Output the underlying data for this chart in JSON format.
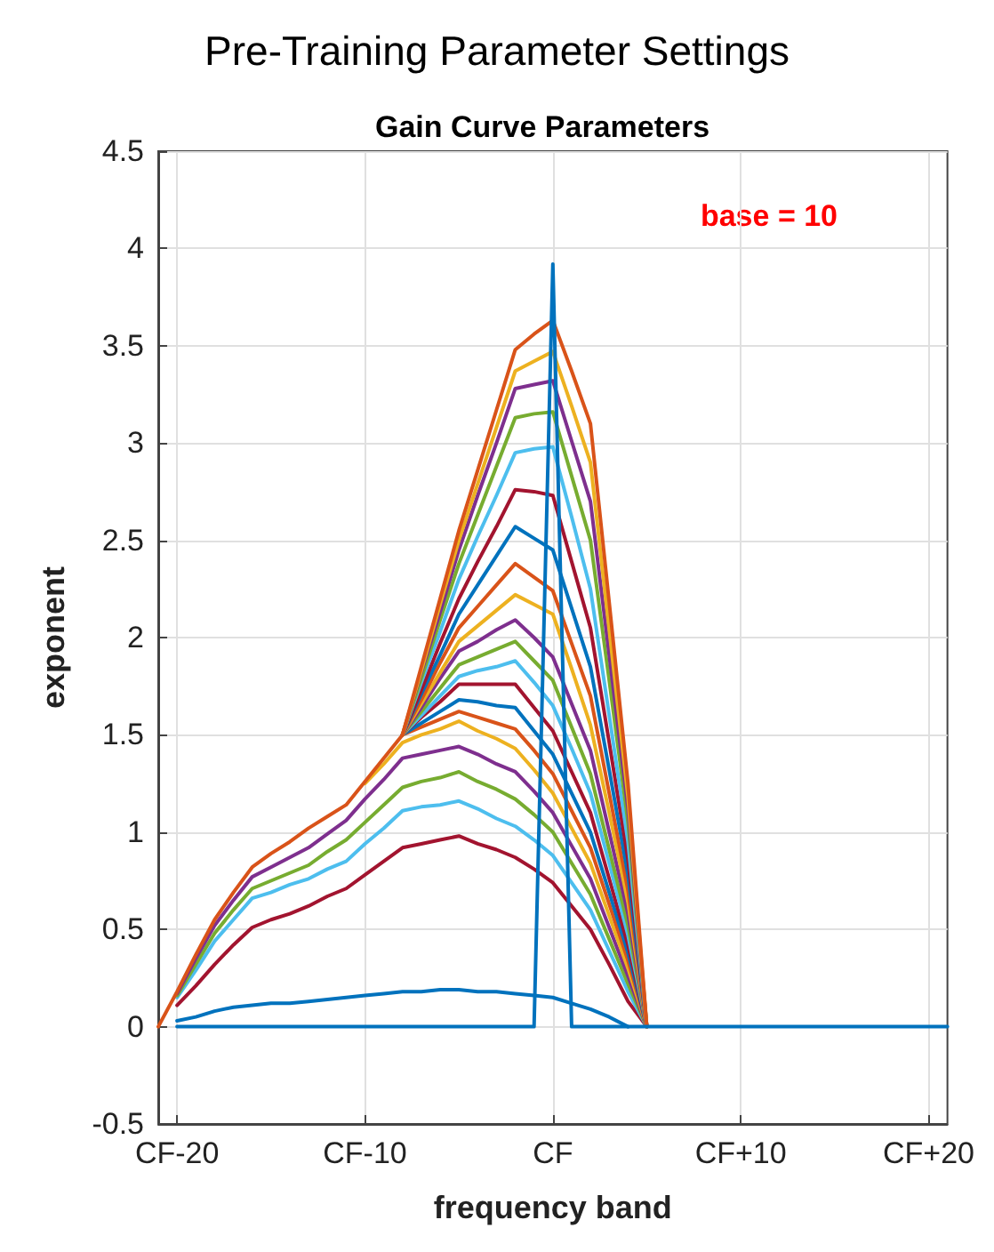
{
  "chart_data": {
    "type": "line",
    "title": "Pre-Training Parameter Settings",
    "subtitle": "Gain Curve Parameters",
    "xlabel": "frequency band",
    "ylabel": "exponent",
    "annotations": [
      "base = 10"
    ],
    "categories": [
      null,
      "CF-20",
      null,
      null,
      null,
      null,
      null,
      null,
      null,
      null,
      null,
      "CF-10",
      null,
      null,
      null,
      null,
      null,
      null,
      null,
      null,
      null,
      "CF",
      null,
      null,
      null,
      null,
      null,
      null,
      null,
      null,
      null,
      "CF+10",
      null,
      null,
      null,
      null,
      null,
      null,
      null,
      null,
      null,
      "CF+20",
      null
    ],
    "series": [
      {
        "color": "#0072bd",
        "values": [
          null,
          0.03,
          0.05,
          0.08,
          0.1,
          0.11,
          0.12,
          0.12,
          0.13,
          0.14,
          0.15,
          0.16,
          0.17,
          0.18,
          0.18,
          0.19,
          0.19,
          0.18,
          0.18,
          0.17,
          0.16,
          0.15,
          0.12,
          0.09,
          0.05,
          0,
          null,
          null,
          null,
          null,
          null,
          null,
          null,
          null,
          null,
          null,
          null,
          null,
          null,
          null,
          null,
          null,
          null
        ]
      },
      {
        "color": "#a2142f",
        "values": [
          null,
          0.11,
          0.21,
          0.32,
          0.42,
          0.51,
          0.55,
          0.58,
          0.62,
          0.67,
          0.71,
          0.78,
          0.85,
          0.92,
          0.94,
          0.96,
          0.98,
          0.94,
          0.91,
          0.87,
          0.81,
          0.74,
          0.62,
          0.5,
          0.32,
          0.13,
          0,
          null,
          null,
          null,
          null,
          null,
          null,
          null,
          null,
          null,
          null,
          null,
          null,
          null,
          null,
          null,
          null
        ]
      },
      {
        "color": "#4dbeee",
        "values": [
          null,
          0.15,
          0.29,
          0.44,
          0.55,
          0.66,
          0.69,
          0.73,
          0.76,
          0.81,
          0.85,
          0.94,
          1.02,
          1.11,
          1.13,
          1.14,
          1.16,
          1.12,
          1.07,
          1.03,
          0.96,
          0.88,
          0.74,
          0.6,
          0.39,
          0.18,
          0,
          null,
          null,
          null,
          null,
          null,
          null,
          null,
          null,
          null,
          null,
          null,
          null,
          null,
          null,
          null,
          null
        ]
      },
      {
        "color": "#77ac30",
        "values": [
          null,
          0.16,
          0.32,
          0.48,
          0.6,
          0.71,
          0.75,
          0.79,
          0.83,
          0.9,
          0.96,
          1.05,
          1.14,
          1.23,
          1.26,
          1.28,
          1.31,
          1.26,
          1.22,
          1.17,
          1.09,
          1.0,
          0.84,
          0.68,
          0.45,
          0.22,
          0,
          null,
          null,
          null,
          null,
          null,
          null,
          null,
          null,
          null,
          null,
          null,
          null,
          null,
          null,
          null,
          null
        ]
      },
      {
        "color": "#7e2f8e",
        "values": [
          null,
          0.17,
          0.35,
          0.52,
          0.65,
          0.77,
          0.82,
          0.87,
          0.92,
          0.99,
          1.06,
          1.17,
          1.27,
          1.38,
          1.4,
          1.42,
          1.44,
          1.4,
          1.35,
          1.31,
          1.21,
          1.1,
          0.93,
          0.76,
          0.51,
          0.26,
          0,
          null,
          null,
          null,
          null,
          null,
          null,
          null,
          null,
          null,
          null,
          null,
          null,
          null,
          null,
          null,
          null
        ]
      },
      {
        "color": "#edb120",
        "values": [
          null,
          null,
          null,
          null,
          null,
          null,
          null,
          null,
          null,
          null,
          null,
          1.25,
          1.35,
          1.46,
          1.5,
          1.53,
          1.57,
          1.52,
          1.48,
          1.43,
          1.32,
          1.2,
          1.02,
          0.84,
          0.57,
          0.3,
          0,
          null,
          null,
          null,
          null,
          null,
          null,
          null,
          null,
          null,
          null,
          null,
          null,
          null,
          null,
          null,
          null
        ]
      },
      {
        "color": "#d95319",
        "values": [
          null,
          null,
          null,
          null,
          null,
          null,
          null,
          null,
          null,
          null,
          null,
          null,
          null,
          1.5,
          1.54,
          1.58,
          1.62,
          1.59,
          1.56,
          1.53,
          1.42,
          1.3,
          1.11,
          0.92,
          0.63,
          0.34,
          0,
          null,
          null,
          null,
          null,
          null,
          null,
          null,
          null,
          null,
          null,
          null,
          null,
          null,
          null,
          null,
          null
        ]
      },
      {
        "color": "#0072bd",
        "values": [
          null,
          null,
          null,
          null,
          null,
          null,
          null,
          null,
          null,
          null,
          null,
          null,
          null,
          1.5,
          1.56,
          1.62,
          1.68,
          1.67,
          1.65,
          1.64,
          1.52,
          1.4,
          1.2,
          1.0,
          0.69,
          0.38,
          0,
          null,
          null,
          null,
          null,
          null,
          null,
          null,
          null,
          null,
          null,
          null,
          null,
          null,
          null,
          null,
          null
        ]
      },
      {
        "color": "#a2142f",
        "values": [
          null,
          null,
          null,
          null,
          null,
          null,
          null,
          null,
          null,
          null,
          null,
          null,
          null,
          1.5,
          1.59,
          1.67,
          1.76,
          1.76,
          1.76,
          1.76,
          1.64,
          1.52,
          1.31,
          1.1,
          0.76,
          0.42,
          0,
          null,
          null,
          null,
          null,
          null,
          null,
          null,
          null,
          null,
          null,
          null,
          null,
          null,
          null,
          null,
          null
        ]
      },
      {
        "color": "#4dbeee",
        "values": [
          null,
          null,
          null,
          null,
          null,
          null,
          null,
          null,
          null,
          null,
          null,
          null,
          null,
          1.5,
          1.6,
          1.7,
          1.8,
          1.83,
          1.85,
          1.88,
          1.77,
          1.65,
          1.43,
          1.2,
          0.84,
          0.47,
          0,
          null,
          null,
          null,
          null,
          null,
          null,
          null,
          null,
          null,
          null,
          null,
          null,
          null,
          null,
          null,
          null
        ]
      },
      {
        "color": "#77ac30",
        "values": [
          null,
          null,
          null,
          null,
          null,
          null,
          null,
          null,
          null,
          null,
          null,
          null,
          null,
          1.5,
          1.62,
          1.74,
          1.86,
          1.9,
          1.94,
          1.98,
          1.88,
          1.78,
          1.54,
          1.3,
          0.91,
          0.52,
          0,
          null,
          null,
          null,
          null,
          null,
          null,
          null,
          null,
          null,
          null,
          null,
          null,
          null,
          null,
          null,
          null
        ]
      },
      {
        "color": "#7e2f8e",
        "values": [
          null,
          null,
          null,
          null,
          null,
          null,
          null,
          null,
          null,
          null,
          null,
          null,
          null,
          1.5,
          1.64,
          1.79,
          1.93,
          1.98,
          2.04,
          2.09,
          2.0,
          1.9,
          1.66,
          1.42,
          1.0,
          0.58,
          0,
          null,
          null,
          null,
          null,
          null,
          null,
          null,
          null,
          null,
          null,
          null,
          null,
          null,
          null,
          null,
          null
        ]
      },
      {
        "color": "#edb120",
        "values": [
          null,
          null,
          null,
          null,
          null,
          null,
          null,
          null,
          null,
          null,
          null,
          null,
          null,
          1.5,
          1.66,
          1.82,
          1.98,
          2.06,
          2.14,
          2.22,
          2.17,
          2.12,
          1.84,
          1.55,
          1.1,
          0.64,
          0,
          null,
          null,
          null,
          null,
          null,
          null,
          null,
          null,
          null,
          null,
          null,
          null,
          null,
          null,
          null,
          null
        ]
      },
      {
        "color": "#d95319",
        "values": [
          null,
          null,
          null,
          null,
          null,
          null,
          null,
          null,
          null,
          null,
          null,
          null,
          null,
          1.5,
          1.68,
          1.87,
          2.05,
          2.16,
          2.27,
          2.38,
          2.31,
          2.24,
          1.97,
          1.7,
          1.2,
          0.7,
          0,
          null,
          null,
          null,
          null,
          null,
          null,
          null,
          null,
          null,
          null,
          null,
          null,
          null,
          null,
          null,
          null
        ]
      },
      {
        "color": "#0072bd",
        "values": [
          null,
          null,
          null,
          null,
          null,
          null,
          null,
          null,
          null,
          null,
          null,
          null,
          null,
          1.5,
          1.71,
          1.91,
          2.12,
          2.27,
          2.42,
          2.57,
          2.51,
          2.45,
          2.15,
          1.85,
          1.32,
          0.78,
          0,
          null,
          null,
          null,
          null,
          null,
          null,
          null,
          null,
          null,
          null,
          null,
          null,
          null,
          null,
          null,
          null
        ]
      },
      {
        "color": "#a2142f",
        "values": [
          null,
          null,
          null,
          null,
          null,
          null,
          null,
          null,
          null,
          null,
          null,
          null,
          null,
          1.5,
          1.73,
          1.97,
          2.2,
          2.39,
          2.57,
          2.76,
          2.75,
          2.73,
          2.39,
          2.05,
          1.46,
          0.86,
          0,
          null,
          null,
          null,
          null,
          null,
          null,
          null,
          null,
          null,
          null,
          null,
          null,
          null,
          null,
          null,
          null
        ]
      },
      {
        "color": "#4dbeee",
        "values": [
          null,
          null,
          null,
          null,
          null,
          null,
          null,
          null,
          null,
          null,
          null,
          null,
          null,
          1.5,
          1.77,
          2.03,
          2.3,
          2.52,
          2.73,
          2.95,
          2.97,
          2.98,
          2.62,
          2.25,
          1.6,
          0.95,
          0,
          null,
          null,
          null,
          null,
          null,
          null,
          null,
          null,
          null,
          null,
          null,
          null,
          null,
          null,
          null,
          null
        ]
      },
      {
        "color": "#77ac30",
        "values": [
          null,
          null,
          null,
          null,
          null,
          null,
          null,
          null,
          null,
          null,
          null,
          null,
          null,
          1.5,
          1.79,
          2.09,
          2.38,
          2.63,
          2.88,
          3.13,
          3.15,
          3.16,
          2.83,
          2.5,
          1.78,
          1.05,
          0,
          null,
          null,
          null,
          null,
          null,
          null,
          null,
          null,
          null,
          null,
          null,
          null,
          null,
          null,
          null,
          null
        ]
      },
      {
        "color": "#7e2f8e",
        "values": [
          null,
          null,
          null,
          null,
          null,
          null,
          null,
          null,
          null,
          null,
          null,
          null,
          null,
          1.5,
          1.82,
          2.13,
          2.45,
          2.73,
          3.0,
          3.28,
          3.3,
          3.32,
          3.01,
          2.7,
          1.91,
          1.12,
          0,
          null,
          null,
          null,
          null,
          null,
          null,
          null,
          null,
          null,
          null,
          null,
          null,
          null,
          null,
          null,
          null
        ]
      },
      {
        "color": "#edb120",
        "values": [
          null,
          null,
          null,
          null,
          null,
          null,
          null,
          null,
          null,
          null,
          null,
          null,
          null,
          1.5,
          1.83,
          2.17,
          2.5,
          2.79,
          3.08,
          3.37,
          3.42,
          3.47,
          3.19,
          2.9,
          2.04,
          1.18,
          0,
          null,
          null,
          null,
          null,
          null,
          null,
          null,
          null,
          null,
          null,
          null,
          null,
          null,
          null,
          null,
          null
        ]
      },
      {
        "color": "#d95319",
        "values": [
          0,
          0.18,
          0.37,
          0.55,
          0.69,
          0.82,
          0.89,
          0.95,
          1.02,
          1.08,
          1.14,
          1.26,
          1.38,
          1.5,
          1.85,
          2.2,
          2.55,
          2.86,
          3.17,
          3.48,
          3.56,
          3.63,
          3.37,
          3.1,
          2.18,
          1.25,
          0,
          null,
          null,
          null,
          null,
          null,
          null,
          null,
          null,
          null,
          null,
          null,
          null,
          null,
          null,
          null,
          null
        ]
      },
      {
        "color": "#0072bd",
        "values": [
          null,
          0,
          0,
          0,
          0,
          0,
          0,
          0,
          0,
          0,
          0,
          0,
          0,
          0,
          0,
          0,
          0,
          0,
          0,
          0,
          0,
          3.92,
          0,
          0,
          0,
          0,
          0,
          0,
          0,
          0,
          0,
          0,
          0,
          0,
          0,
          0,
          0,
          0,
          0,
          0,
          0,
          0,
          0
        ]
      }
    ],
    "ylim": [
      -0.5,
      4.5
    ],
    "yticks": [
      -0.5,
      0,
      0.5,
      1,
      1.5,
      2,
      2.5,
      3,
      3.5,
      4,
      4.5
    ],
    "grid": true,
    "marker": "none",
    "line_style": "solid"
  }
}
